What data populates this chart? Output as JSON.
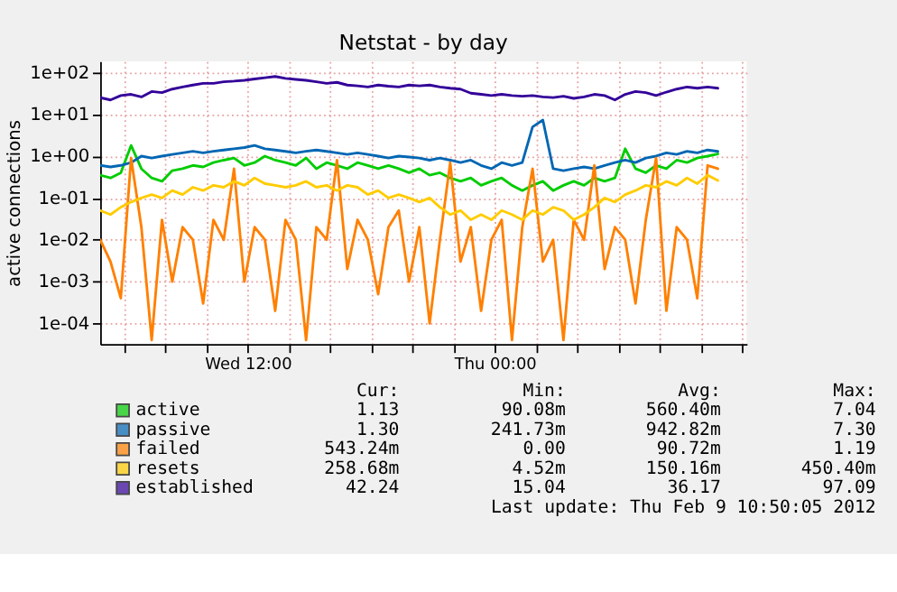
{
  "chart_data": {
    "type": "line",
    "title": "Netstat - by day",
    "ylabel": "active connections",
    "log": "y",
    "grid": true,
    "legend": "bottom",
    "marker": "none",
    "line_style": "solid",
    "xlim": [
      "2012-02-08T04:50",
      "2012-02-09T12:14"
    ],
    "xticks": [
      {
        "value": "2012-02-08T06:00",
        "label": null
      },
      {
        "value": "2012-02-08T08:00",
        "label": null
      },
      {
        "value": "2012-02-08T10:00",
        "label": null
      },
      {
        "value": "2012-02-08T12:00",
        "label": "Wed 12:00"
      },
      {
        "value": "2012-02-08T14:00",
        "label": null
      },
      {
        "value": "2012-02-08T16:00",
        "label": null
      },
      {
        "value": "2012-02-08T18:00",
        "label": null
      },
      {
        "value": "2012-02-08T20:00",
        "label": null
      },
      {
        "value": "2012-02-08T22:00",
        "label": null
      },
      {
        "value": "2012-02-09T00:00",
        "label": "Thu 00:00"
      },
      {
        "value": "2012-02-09T02:00",
        "label": null
      },
      {
        "value": "2012-02-09T04:00",
        "label": null
      },
      {
        "value": "2012-02-09T06:00",
        "label": null
      },
      {
        "value": "2012-02-09T08:00",
        "label": null
      },
      {
        "value": "2012-02-09T10:00",
        "label": null
      },
      {
        "value": "2012-02-09T12:00",
        "label": null
      }
    ],
    "ylim": [
      3.2e-05,
      185
    ],
    "yticks": [
      {
        "value": 0.0001,
        "label": "1e-04"
      },
      {
        "value": 0.001,
        "label": "1e-03"
      },
      {
        "value": 0.01,
        "label": "1e-02"
      },
      {
        "value": 0.1,
        "label": "1e-01"
      },
      {
        "value": 1,
        "label": "1e+00"
      },
      {
        "value": 10,
        "label": "1e+01"
      },
      {
        "value": 100,
        "label": "1e+02"
      }
    ],
    "series": [
      {
        "name": "active",
        "color": "#00cc00",
        "values": [
          0.35,
          0.3,
          0.4,
          1.8,
          0.5,
          0.3,
          0.25,
          0.45,
          0.5,
          0.6,
          0.55,
          0.7,
          0.8,
          0.9,
          0.6,
          0.7,
          1.0,
          0.8,
          0.7,
          0.6,
          0.9,
          0.5,
          0.7,
          0.6,
          0.5,
          0.7,
          0.6,
          0.5,
          0.6,
          0.5,
          0.4,
          0.5,
          0.35,
          0.4,
          0.3,
          0.25,
          0.3,
          0.2,
          0.25,
          0.3,
          0.2,
          0.15,
          0.2,
          0.25,
          0.15,
          0.2,
          0.25,
          0.2,
          0.3,
          0.25,
          0.3,
          1.5,
          0.5,
          0.4,
          0.6,
          0.5,
          0.8,
          0.7,
          0.9,
          1.0,
          1.13
        ]
      },
      {
        "name": "passive",
        "color": "#0066b3",
        "values": [
          0.6,
          0.55,
          0.6,
          0.7,
          1.0,
          0.9,
          1.0,
          1.1,
          1.2,
          1.3,
          1.2,
          1.3,
          1.4,
          1.5,
          1.6,
          1.8,
          1.5,
          1.4,
          1.3,
          1.2,
          1.3,
          1.4,
          1.3,
          1.2,
          1.1,
          1.2,
          1.1,
          1.0,
          0.9,
          1.0,
          0.95,
          0.9,
          0.8,
          0.9,
          0.8,
          0.7,
          0.8,
          0.6,
          0.5,
          0.7,
          0.6,
          0.7,
          5.0,
          7.3,
          0.5,
          0.45,
          0.5,
          0.55,
          0.5,
          0.6,
          0.7,
          0.8,
          0.7,
          0.9,
          1.0,
          1.2,
          1.1,
          1.3,
          1.2,
          1.4,
          1.3
        ]
      },
      {
        "name": "failed",
        "color": "#ff8000",
        "values": [
          0.01,
          0.003,
          0.0004,
          0.9,
          0.02,
          4e-05,
          0.03,
          0.001,
          0.02,
          0.01,
          0.0003,
          0.03,
          0.01,
          0.5,
          0.001,
          0.02,
          0.01,
          0.0002,
          0.03,
          0.01,
          4e-05,
          0.02,
          0.01,
          0.8,
          0.002,
          0.03,
          0.01,
          0.0005,
          0.02,
          0.05,
          0.001,
          0.02,
          0.0001,
          0.01,
          0.7,
          0.003,
          0.02,
          0.0002,
          0.01,
          0.03,
          4e-05,
          0.02,
          0.5,
          0.003,
          0.01,
          4e-05,
          0.03,
          0.01,
          0.6,
          0.002,
          0.02,
          0.01,
          0.0003,
          0.03,
          0.9,
          0.0002,
          0.02,
          0.01,
          0.0004,
          0.6,
          0.5
        ]
      },
      {
        "name": "resets",
        "color": "#ffcc00",
        "values": [
          0.05,
          0.04,
          0.06,
          0.08,
          0.1,
          0.12,
          0.1,
          0.15,
          0.12,
          0.18,
          0.15,
          0.2,
          0.18,
          0.25,
          0.2,
          0.3,
          0.22,
          0.2,
          0.18,
          0.2,
          0.25,
          0.18,
          0.2,
          0.15,
          0.2,
          0.18,
          0.12,
          0.15,
          0.1,
          0.12,
          0.1,
          0.08,
          0.1,
          0.06,
          0.04,
          0.05,
          0.03,
          0.04,
          0.03,
          0.05,
          0.04,
          0.03,
          0.05,
          0.04,
          0.06,
          0.05,
          0.03,
          0.04,
          0.06,
          0.1,
          0.08,
          0.12,
          0.15,
          0.2,
          0.18,
          0.25,
          0.2,
          0.3,
          0.22,
          0.35,
          0.26
        ]
      },
      {
        "name": "established",
        "color": "#330099",
        "values": [
          25,
          22,
          28,
          30,
          26,
          35,
          33,
          40,
          45,
          50,
          55,
          55,
          60,
          62,
          65,
          70,
          75,
          80,
          72,
          68,
          65,
          60,
          55,
          58,
          50,
          48,
          45,
          50,
          47,
          45,
          50,
          48,
          50,
          45,
          42,
          40,
          32,
          30,
          28,
          30,
          28,
          27,
          28,
          26,
          25,
          27,
          24,
          26,
          30,
          28,
          22,
          30,
          35,
          33,
          28,
          34,
          40,
          45,
          42,
          45,
          42
        ]
      }
    ],
    "x": [
      "2012-02-08T04:50",
      "2012-02-08T05:20",
      "2012-02-08T05:50",
      "2012-02-08T06:20",
      "2012-02-08T06:50",
      "2012-02-08T07:20",
      "2012-02-08T07:50",
      "2012-02-08T08:20",
      "2012-02-08T08:50",
      "2012-02-08T09:20",
      "2012-02-08T09:50",
      "2012-02-08T10:20",
      "2012-02-08T10:50",
      "2012-02-08T11:20",
      "2012-02-08T11:50",
      "2012-02-08T12:20",
      "2012-02-08T12:50",
      "2012-02-08T13:20",
      "2012-02-08T13:50",
      "2012-02-08T14:20",
      "2012-02-08T14:50",
      "2012-02-08T15:20",
      "2012-02-08T15:50",
      "2012-02-08T16:20",
      "2012-02-08T16:50",
      "2012-02-08T17:20",
      "2012-02-08T17:50",
      "2012-02-08T18:20",
      "2012-02-08T18:50",
      "2012-02-08T19:20",
      "2012-02-08T19:50",
      "2012-02-08T20:20",
      "2012-02-08T20:50",
      "2012-02-08T21:20",
      "2012-02-08T21:50",
      "2012-02-08T22:20",
      "2012-02-08T22:50",
      "2012-02-08T23:20",
      "2012-02-08T23:50",
      "2012-02-09T00:20",
      "2012-02-09T00:50",
      "2012-02-09T01:20",
      "2012-02-09T01:50",
      "2012-02-09T02:20",
      "2012-02-09T02:50",
      "2012-02-09T03:20",
      "2012-02-09T03:50",
      "2012-02-09T04:20",
      "2012-02-09T04:50",
      "2012-02-09T05:20",
      "2012-02-09T05:50",
      "2012-02-09T06:20",
      "2012-02-09T06:50",
      "2012-02-09T07:20",
      "2012-02-09T07:50",
      "2012-02-09T08:20",
      "2012-02-09T08:50",
      "2012-02-09T09:20",
      "2012-02-09T09:50",
      "2012-02-09T10:20",
      "2012-02-09T10:50"
    ],
    "annotations": [
      "Cur:",
      "Min:",
      "Avg:",
      "Max:",
      "1.13",
      "90.08m",
      "560.40m",
      "7.04",
      "1.30",
      "241.73m",
      "942.82m",
      "7.30",
      "543.24m",
      "0.00",
      "90.72m",
      "1.19",
      "258.68m",
      "4.52m",
      "150.16m",
      "450.40m",
      "42.24",
      "15.04",
      "36.17",
      "97.09",
      "Last update:  Thu Feb  9 10:50:05 2012"
    ]
  }
}
